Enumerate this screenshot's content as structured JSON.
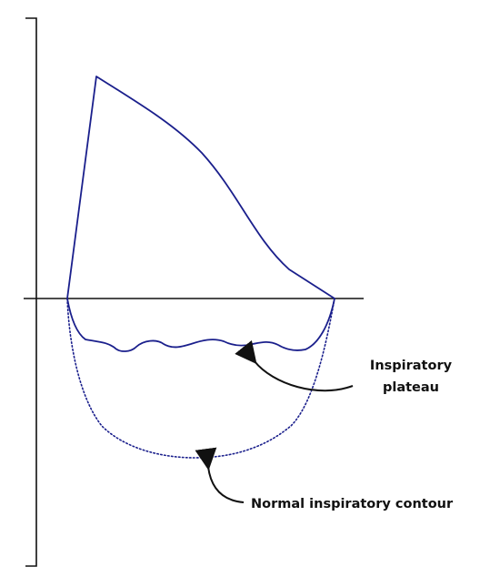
{
  "labels": {
    "plateau_line1": "Inspiratory",
    "plateau_line2": "plateau",
    "normal_contour": "Normal inspiratory contour"
  },
  "colors": {
    "curve": "#1a1f8c",
    "axis": "#111111",
    "arrow": "#111111",
    "background": "#ffffff"
  }
}
